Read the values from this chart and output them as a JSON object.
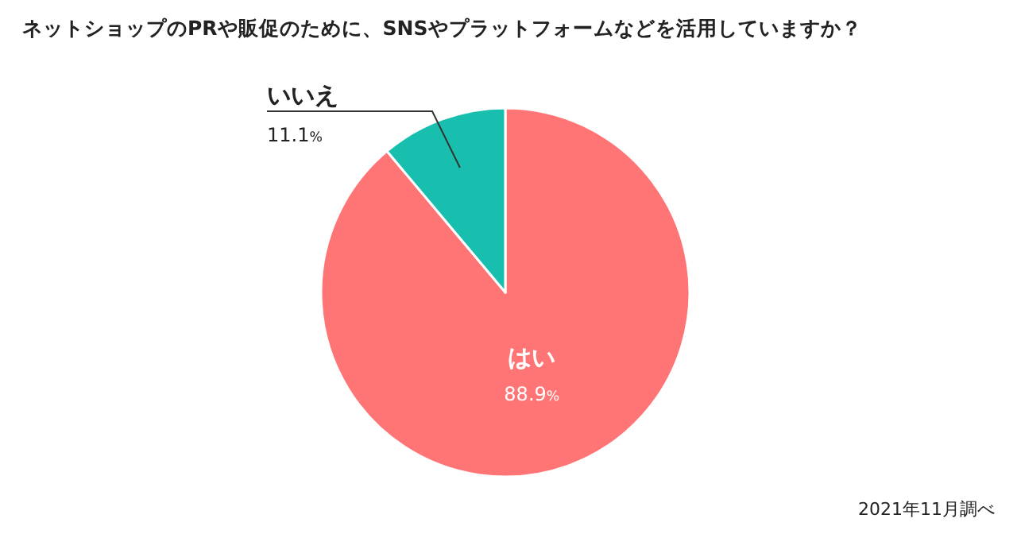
{
  "chart_data": {
    "type": "pie",
    "title": "ネットショップのPRや販促のために、SNSやプラットフォームなどを活用していますか？",
    "categories": [
      "はい",
      "いいえ"
    ],
    "values": [
      88.9,
      11.1
    ],
    "colors": [
      "#ff7576",
      "#18bfae"
    ],
    "value_labels": [
      "88.9%",
      "11.1%"
    ],
    "annotations": [
      "2021年11月調べ"
    ]
  }
}
